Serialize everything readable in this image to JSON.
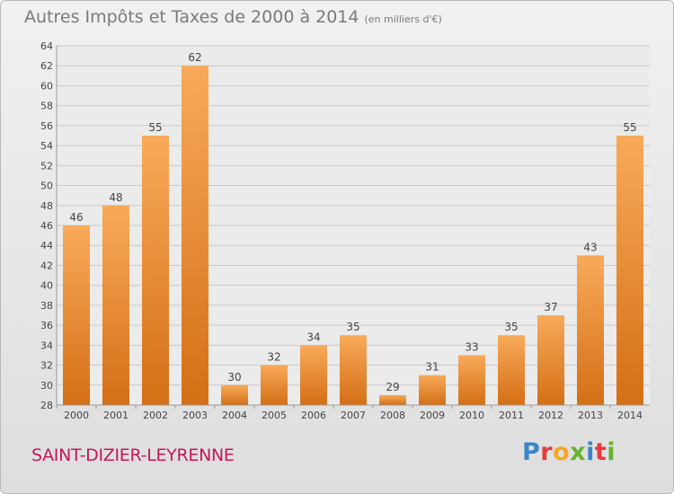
{
  "header": {
    "title": "Autres Impôts et Taxes de 2000 à 2014",
    "unit": "(en milliers d'€)"
  },
  "commune": "SAINT-DIZIER-LEYRENNE",
  "logo": {
    "text": "Proxiti",
    "letter_colors": [
      "#3a86c8",
      "#e8383d",
      "#f7a823",
      "#67b230",
      "#3a86c8",
      "#e8383d",
      "#67b230"
    ]
  },
  "colors": {
    "bar_light": "#f8aa5a",
    "bar_dark": "#d46f15",
    "grid": "#c9c9c9",
    "plot_bg": "#ebebeb"
  },
  "chart_data": {
    "type": "bar",
    "title": "Autres Impôts et Taxes de 2000 à 2014",
    "subtitle": "(en milliers d'€)",
    "categories": [
      "2000",
      "2001",
      "2002",
      "2003",
      "2004",
      "2005",
      "2006",
      "2007",
      "2008",
      "2009",
      "2010",
      "2011",
      "2012",
      "2013",
      "2014"
    ],
    "values": [
      46,
      48,
      55,
      62,
      30,
      32,
      34,
      35,
      29,
      31,
      33,
      35,
      37,
      43,
      55
    ],
    "ylim": [
      28,
      64
    ],
    "ytick_step": 2,
    "grid": true,
    "data_labels": true
  }
}
